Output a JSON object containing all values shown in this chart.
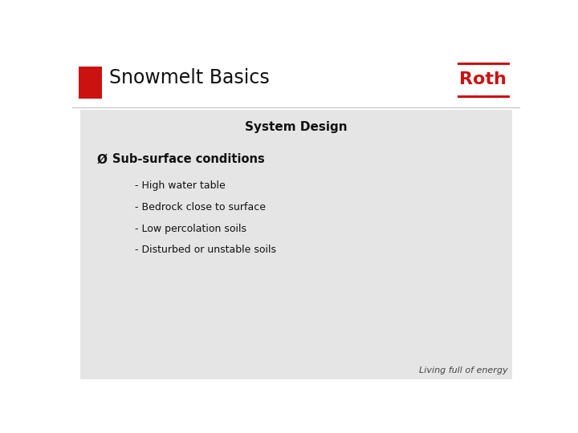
{
  "title": "Snowmelt Basics",
  "section_title": "System Design",
  "bullet_header": "Sub-surface conditions",
  "bullet_items": [
    "- High water table",
    "- Bedrock close to surface",
    "- Low percolation soils",
    "- Disturbed or unstable soils"
  ],
  "bg_color": "#ffffff",
  "content_bg_color": "#e5e5e5",
  "header_bg_color": "#ffffff",
  "red_color": "#cc1111",
  "dark_color": "#111111",
  "gray_text_color": "#444444",
  "roth_text": "Roth",
  "tagline": "Living full of energy",
  "title_fontsize": 17,
  "section_title_fontsize": 11,
  "bullet_header_fontsize": 10.5,
  "bullet_item_fontsize": 9,
  "tagline_fontsize": 8,
  "roth_fontsize": 16
}
